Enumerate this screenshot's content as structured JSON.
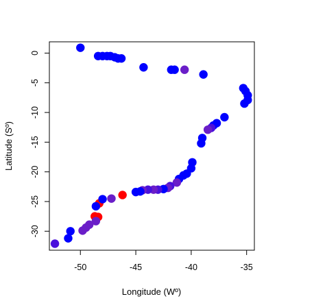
{
  "chart_data": {
    "type": "scatter",
    "title": "",
    "xlabel": "Longitude (Wº)",
    "ylabel": "Latitude (Sº)",
    "xlim": [
      -52.8,
      -34.3
    ],
    "ylim": [
      -33.2,
      1.9
    ],
    "x_ticks": [
      -50,
      -45,
      -40,
      -35
    ],
    "x_tick_labels": [
      "-50",
      "-45",
      "-40",
      "-35"
    ],
    "y_ticks": [
      0,
      -5,
      -10,
      -15,
      -20,
      -25,
      -30
    ],
    "y_tick_labels": [
      "0",
      "-5",
      "-10",
      "-15",
      "-20",
      "-25",
      "-30"
    ],
    "grid": false,
    "legend": "none",
    "colors": {
      "blue": "#0000ff",
      "purple": "#6a1ec8",
      "violet": "#4a10dc",
      "red": "#ff0000"
    },
    "points": [
      {
        "x": -50.0,
        "y": 0.9,
        "c": "blue"
      },
      {
        "x": -48.4,
        "y": -0.5,
        "c": "blue"
      },
      {
        "x": -48.0,
        "y": -0.5,
        "c": "blue"
      },
      {
        "x": -47.6,
        "y": -0.5,
        "c": "blue"
      },
      {
        "x": -47.3,
        "y": -0.5,
        "c": "blue"
      },
      {
        "x": -46.9,
        "y": -0.7,
        "c": "blue"
      },
      {
        "x": -46.6,
        "y": -0.9,
        "c": "blue"
      },
      {
        "x": -46.3,
        "y": -0.9,
        "c": "blue"
      },
      {
        "x": -44.3,
        "y": -2.4,
        "c": "blue"
      },
      {
        "x": -41.8,
        "y": -2.8,
        "c": "blue"
      },
      {
        "x": -41.5,
        "y": -2.8,
        "c": "blue"
      },
      {
        "x": -40.6,
        "y": -2.8,
        "c": "purple"
      },
      {
        "x": -38.9,
        "y": -3.6,
        "c": "blue"
      },
      {
        "x": -35.3,
        "y": -5.9,
        "c": "blue"
      },
      {
        "x": -35.1,
        "y": -6.4,
        "c": "blue"
      },
      {
        "x": -34.9,
        "y": -7.1,
        "c": "blue"
      },
      {
        "x": -34.9,
        "y": -7.9,
        "c": "blue"
      },
      {
        "x": -35.2,
        "y": -8.5,
        "c": "blue"
      },
      {
        "x": -37.0,
        "y": -10.8,
        "c": "blue"
      },
      {
        "x": -37.7,
        "y": -11.8,
        "c": "blue"
      },
      {
        "x": -38.0,
        "y": -12.2,
        "c": "blue"
      },
      {
        "x": -38.2,
        "y": -12.6,
        "c": "violet"
      },
      {
        "x": -38.5,
        "y": -12.9,
        "c": "purple"
      },
      {
        "x": -39.0,
        "y": -14.3,
        "c": "blue"
      },
      {
        "x": -39.1,
        "y": -15.2,
        "c": "blue"
      },
      {
        "x": -39.9,
        "y": -18.4,
        "c": "blue"
      },
      {
        "x": -40.0,
        "y": -19.4,
        "c": "blue"
      },
      {
        "x": -40.4,
        "y": -20.3,
        "c": "blue"
      },
      {
        "x": -40.7,
        "y": -20.6,
        "c": "blue"
      },
      {
        "x": -41.1,
        "y": -21.2,
        "c": "blue"
      },
      {
        "x": -41.3,
        "y": -21.8,
        "c": "purple"
      },
      {
        "x": -41.9,
        "y": -22.4,
        "c": "violet"
      },
      {
        "x": -42.1,
        "y": -22.7,
        "c": "purple"
      },
      {
        "x": -42.5,
        "y": -22.9,
        "c": "blue"
      },
      {
        "x": -43.0,
        "y": -23.0,
        "c": "violet"
      },
      {
        "x": -43.4,
        "y": -23.0,
        "c": "purple"
      },
      {
        "x": -43.9,
        "y": -23.0,
        "c": "violet"
      },
      {
        "x": -44.4,
        "y": -23.1,
        "c": "purple"
      },
      {
        "x": -45.0,
        "y": -23.4,
        "c": "blue"
      },
      {
        "x": -44.6,
        "y": -23.3,
        "c": "blue"
      },
      {
        "x": -46.2,
        "y": -23.9,
        "c": "red"
      },
      {
        "x": -48.3,
        "y": -25.3,
        "c": "red"
      },
      {
        "x": -47.2,
        "y": -24.5,
        "c": "purple"
      },
      {
        "x": -48.0,
        "y": -24.6,
        "c": "blue"
      },
      {
        "x": -48.6,
        "y": -25.8,
        "c": "blue"
      },
      {
        "x": -48.7,
        "y": -27.5,
        "c": "red"
      },
      {
        "x": -48.4,
        "y": -27.6,
        "c": "red"
      },
      {
        "x": -48.6,
        "y": -28.3,
        "c": "purple"
      },
      {
        "x": -49.2,
        "y": -28.9,
        "c": "purple"
      },
      {
        "x": -49.5,
        "y": -29.4,
        "c": "purple"
      },
      {
        "x": -49.8,
        "y": -29.9,
        "c": "purple"
      },
      {
        "x": -50.9,
        "y": -30.0,
        "c": "blue"
      },
      {
        "x": -51.1,
        "y": -31.2,
        "c": "blue"
      },
      {
        "x": -52.3,
        "y": -32.1,
        "c": "violet"
      }
    ]
  }
}
